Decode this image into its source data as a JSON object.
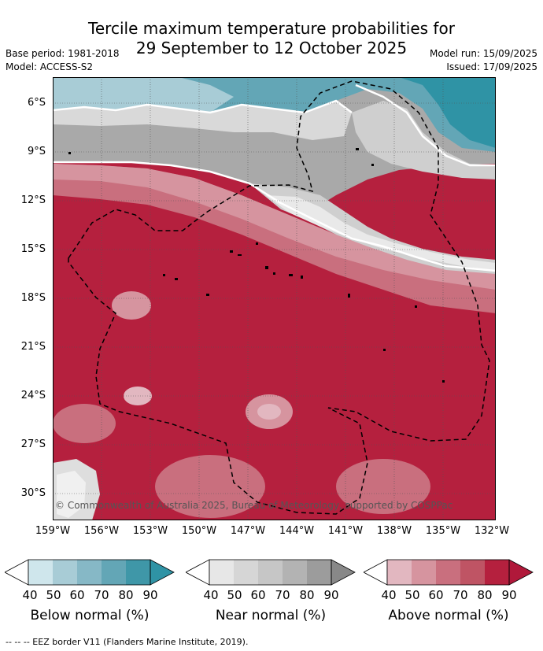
{
  "header": {
    "title_line1": "Tercile maximum temperature probabilities for",
    "title_line2": "29 September to 12 October 2025",
    "base_period": "Base period: 1981-2018",
    "model": "Model: ACCESS-S2",
    "model_run": "Model run: 15/09/2025",
    "issued": "Issued: 17/09/2025"
  },
  "map": {
    "lat_ticks": [
      "6°S",
      "9°S",
      "12°S",
      "15°S",
      "18°S",
      "21°S",
      "24°S",
      "27°S",
      "30°S"
    ],
    "lon_ticks": [
      "159°W",
      "156°W",
      "153°W",
      "150°W",
      "147°W",
      "144°W",
      "141°W",
      "138°W",
      "135°W",
      "132°W"
    ],
    "copyright": "© Commonwealth of Australia 2025, Bureau of Meteorology, supported by COSPPac",
    "colors": {
      "below": [
        "#ffffff",
        "#cfe6ec",
        "#a8ccd6",
        "#86b8c6",
        "#63a6b6",
        "#3f97a8"
      ],
      "near": [
        "#ffffff",
        "#e7e7e7",
        "#d6d6d6",
        "#c6c6c6",
        "#b3b3b3",
        "#9c9c9c"
      ],
      "above": [
        "#ffffff",
        "#e2b7c0",
        "#d6949f",
        "#c96f7e",
        "#bf5464",
        "#b5203e"
      ]
    }
  },
  "legend": [
    {
      "label": "Below normal (%)",
      "ticks": [
        "40",
        "50",
        "60",
        "70",
        "80",
        "90"
      ]
    },
    {
      "label": "Near normal (%)",
      "ticks": [
        "40",
        "50",
        "60",
        "70",
        "80",
        "90"
      ]
    },
    {
      "label": "Above normal (%)",
      "ticks": [
        "40",
        "50",
        "60",
        "70",
        "80",
        "90"
      ]
    }
  ],
  "footer": "-- -- -- EEZ border V11 (Flanders Marine Institute, 2019)."
}
